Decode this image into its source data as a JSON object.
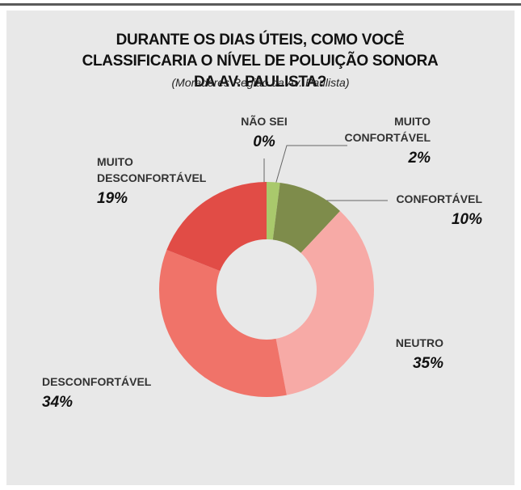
{
  "chart_data": {
    "type": "donut",
    "title": "DURANTE OS DIAS ÚTEIS, COMO VOCÊ CLASSIFICARIA O NÍVEL DE POLUIÇÃO SONORA DA AV. PAULISTA?",
    "subtitle": "(Moradores Região da Av. Paulista)",
    "categories": [
      "NÃO SEI",
      "MUITO CONFORTÁVEL",
      "CONFORTÁVEL",
      "NEUTRO",
      "DESCONFORTÁVEL",
      "MUITO DESCONFORTÁVEL"
    ],
    "values": [
      0,
      2,
      10,
      35,
      34,
      19
    ],
    "value_labels": [
      "0%",
      "2%",
      "10%",
      "35%",
      "34%",
      "19%"
    ],
    "colors": [
      "#2b2b2b",
      "#a9c96c",
      "#7e8c4b",
      "#f7aaa6",
      "#f07369",
      "#e14c46"
    ]
  }
}
